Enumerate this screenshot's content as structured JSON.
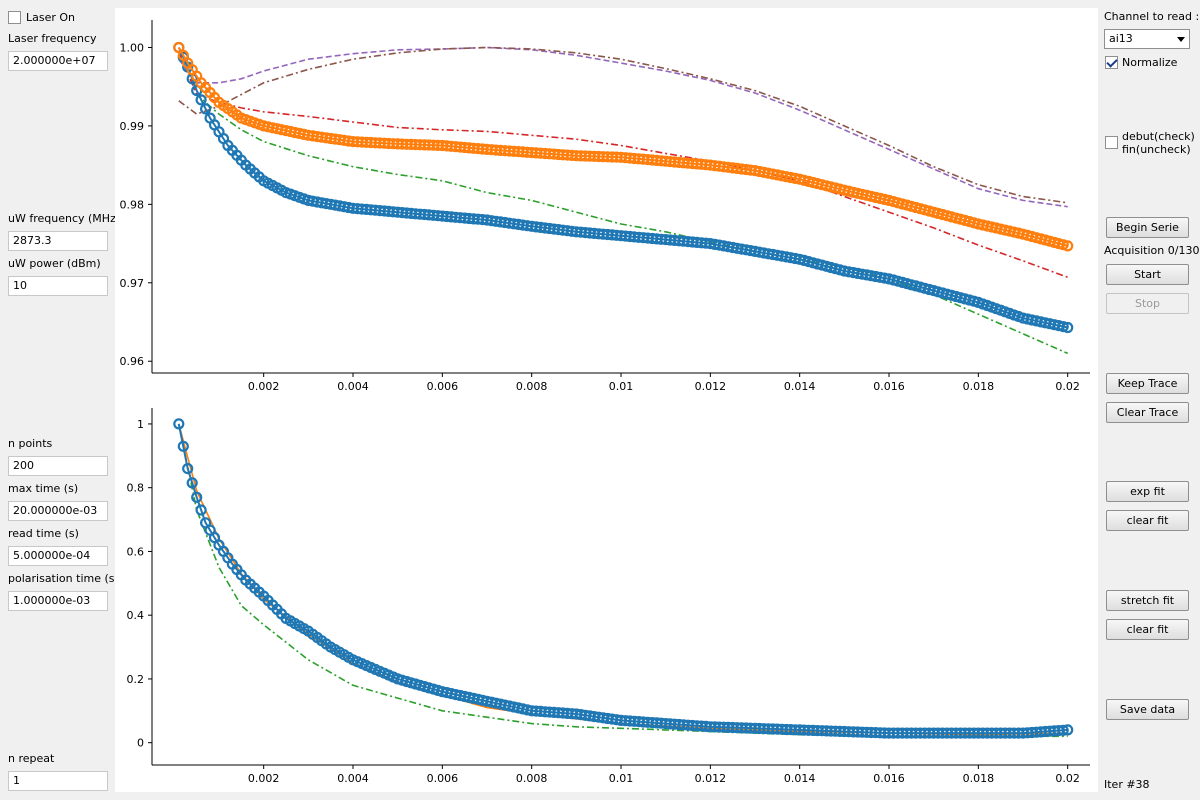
{
  "left_panel": {
    "laser_on_label": "Laser On",
    "laser_frequency_label": "Laser frequency",
    "laser_frequency_value": "2.000000e+07",
    "uw_frequency_label": "uW frequency (MHz)",
    "uw_frequency_value": "2873.3",
    "uw_power_label": "uW power (dBm)",
    "uw_power_value": "10",
    "n_points_label": "n points",
    "n_points_value": "200",
    "max_time_label": "max time (s)",
    "max_time_value": "20.000000e-03",
    "read_time_label": "read time (s)",
    "read_time_value": "5.000000e-04",
    "polarisation_time_label": "polarisation time (s)",
    "polarisation_time_value": "1.000000e-03",
    "n_repeat_label": "n repeat",
    "n_repeat_value": "1"
  },
  "right_panel": {
    "channel_label": "Channel to read :",
    "channel_value": "ai13",
    "normalize_label": "Normalize",
    "debut_label_1": "debut(check)",
    "debut_label_2": "fin(uncheck)",
    "begin_serie": "Begin Serie",
    "acquisition_status": "Acquisition 0/130",
    "start": "Start",
    "stop": "Stop",
    "keep_trace": "Keep Trace",
    "clear_trace": "Clear Trace",
    "exp_fit": "exp fit",
    "clear_fit_1": "clear fit",
    "stretch_fit": "stretch fit",
    "clear_fit_2": "clear fit",
    "save_data": "Save data",
    "iteration": "Iter #38"
  },
  "colors": {
    "blue": "#1f77b4",
    "orange": "#ff7f0e",
    "green": "#2ca02c",
    "red": "#d62728",
    "purple": "#9467bd",
    "brown": "#8c564b"
  },
  "chart_data": [
    {
      "type": "line",
      "x_ticks": [
        "0.002",
        "0.004",
        "0.006",
        "0.008",
        "0.01",
        "0.012",
        "0.014",
        "0.016",
        "0.018",
        "0.02"
      ],
      "y_ticks": [
        "0.96",
        "0.97",
        "0.98",
        "0.99",
        "1.00"
      ],
      "xlim": [
        -0.0005,
        0.0205
      ],
      "ylim": [
        0.9585,
        1.0035
      ],
      "series": [
        {
          "color": "#1f77b4",
          "style": "circles",
          "x": [
            0.0001,
            0.0003,
            0.0005,
            0.0008,
            0.0012,
            0.0016,
            0.002,
            0.0025,
            0.003,
            0.004,
            0.005,
            0.006,
            0.007,
            0.008,
            0.009,
            0.01,
            0.011,
            0.012,
            0.013,
            0.014,
            0.015,
            0.016,
            0.017,
            0.018,
            0.019,
            0.02
          ],
          "y": [
            1.0,
            0.9975,
            0.9945,
            0.991,
            0.9875,
            0.985,
            0.983,
            0.9815,
            0.9805,
            0.9795,
            0.979,
            0.9785,
            0.978,
            0.9772,
            0.9765,
            0.976,
            0.9755,
            0.975,
            0.974,
            0.973,
            0.9715,
            0.9705,
            0.969,
            0.9675,
            0.9655,
            0.9643
          ]
        },
        {
          "color": "#ff7f0e",
          "style": "circles",
          "x": [
            0.0001,
            0.0003,
            0.0006,
            0.001,
            0.0015,
            0.002,
            0.003,
            0.004,
            0.005,
            0.006,
            0.007,
            0.008,
            0.009,
            0.01,
            0.011,
            0.012,
            0.013,
            0.014,
            0.015,
            0.016,
            0.017,
            0.018,
            0.019,
            0.02
          ],
          "y": [
            1.0,
            0.998,
            0.9955,
            0.993,
            0.991,
            0.99,
            0.9888,
            0.988,
            0.9877,
            0.9875,
            0.987,
            0.9866,
            0.9862,
            0.986,
            0.9855,
            0.985,
            0.9843,
            0.9832,
            0.9818,
            0.9805,
            0.979,
            0.9775,
            0.9762,
            0.9747
          ]
        },
        {
          "color": "#2ca02c",
          "style": "dashdot",
          "x": [
            0.0001,
            0.0005,
            0.001,
            0.0015,
            0.002,
            0.003,
            0.004,
            0.005,
            0.006,
            0.007,
            0.008,
            0.009,
            0.01,
            0.011,
            0.012,
            0.013,
            0.014,
            0.015,
            0.016,
            0.017,
            0.018,
            0.019,
            0.02
          ],
          "y": [
            0.9995,
            0.994,
            0.9915,
            0.9895,
            0.988,
            0.9862,
            0.9848,
            0.9838,
            0.983,
            0.9815,
            0.9805,
            0.979,
            0.9775,
            0.9765,
            0.9752,
            0.974,
            0.973,
            0.972,
            0.9705,
            0.9685,
            0.966,
            0.9635,
            0.961
          ]
        },
        {
          "color": "#d62728",
          "style": "dashdot",
          "x": [
            0.0001,
            0.0005,
            0.001,
            0.0015,
            0.002,
            0.003,
            0.004,
            0.005,
            0.006,
            0.007,
            0.008,
            0.009,
            0.01,
            0.011,
            0.012,
            0.013,
            0.014,
            0.015,
            0.016,
            0.017,
            0.018,
            0.019,
            0.02
          ],
          "y": [
            0.9995,
            0.994,
            0.993,
            0.9923,
            0.9918,
            0.9912,
            0.9905,
            0.9898,
            0.9895,
            0.9893,
            0.9888,
            0.9883,
            0.9875,
            0.9865,
            0.9855,
            0.9843,
            0.983,
            0.981,
            0.979,
            0.977,
            0.9748,
            0.9728,
            0.9707
          ]
        },
        {
          "color": "#9467bd",
          "style": "dashed",
          "x": [
            0.0001,
            0.0005,
            0.001,
            0.0015,
            0.002,
            0.003,
            0.004,
            0.005,
            0.006,
            0.007,
            0.008,
            0.009,
            0.01,
            0.011,
            0.012,
            0.013,
            0.014,
            0.015,
            0.016,
            0.017,
            0.018,
            0.019,
            0.02
          ],
          "y": [
            0.9985,
            0.9955,
            0.9955,
            0.996,
            0.997,
            0.9985,
            0.9992,
            0.9997,
            0.9998,
            1.0,
            0.9997,
            0.999,
            0.998,
            0.997,
            0.9958,
            0.9942,
            0.992,
            0.9895,
            0.987,
            0.9845,
            0.982,
            0.9805,
            0.9797
          ]
        },
        {
          "color": "#8c564b",
          "style": "dashdot",
          "x": [
            0.0001,
            0.0005,
            0.001,
            0.0015,
            0.002,
            0.003,
            0.004,
            0.005,
            0.006,
            0.007,
            0.008,
            0.009,
            0.01,
            0.011,
            0.012,
            0.013,
            0.014,
            0.015,
            0.016,
            0.017,
            0.018,
            0.019,
            0.02
          ],
          "y": [
            0.9932,
            0.9915,
            0.9925,
            0.994,
            0.9955,
            0.9972,
            0.9985,
            0.9993,
            0.9998,
            1.0,
            0.9998,
            0.9993,
            0.9985,
            0.9973,
            0.996,
            0.9945,
            0.9925,
            0.99,
            0.9875,
            0.9848,
            0.9825,
            0.981,
            0.9802
          ]
        }
      ]
    },
    {
      "type": "line",
      "x_ticks": [
        "0.002",
        "0.004",
        "0.006",
        "0.008",
        "0.01",
        "0.012",
        "0.014",
        "0.016",
        "0.018",
        "0.02"
      ],
      "y_ticks": [
        "0",
        "0.2",
        "0.4",
        "0.6",
        "0.8",
        "1"
      ],
      "xlim": [
        -0.0005,
        0.0205
      ],
      "ylim": [
        -0.07,
        1.05
      ],
      "series": [
        {
          "color": "#1f77b4",
          "style": "circles",
          "x": [
            0.0001,
            0.0003,
            0.0005,
            0.0007,
            0.001,
            0.0013,
            0.0016,
            0.002,
            0.0025,
            0.003,
            0.0035,
            0.004,
            0.0045,
            0.005,
            0.006,
            0.007,
            0.008,
            0.009,
            0.01,
            0.011,
            0.012,
            0.013,
            0.014,
            0.015,
            0.016,
            0.017,
            0.018,
            0.019,
            0.02
          ],
          "y": [
            1.0,
            0.86,
            0.77,
            0.69,
            0.62,
            0.56,
            0.51,
            0.46,
            0.39,
            0.35,
            0.3,
            0.26,
            0.23,
            0.2,
            0.16,
            0.13,
            0.1,
            0.09,
            0.07,
            0.06,
            0.05,
            0.045,
            0.04,
            0.035,
            0.03,
            0.03,
            0.03,
            0.03,
            0.04
          ]
        },
        {
          "color": "#ff7f0e",
          "style": "solid",
          "x": [
            0.0001,
            0.0005,
            0.001,
            0.0015,
            0.002,
            0.003,
            0.004,
            0.005,
            0.006,
            0.007,
            0.008,
            0.009,
            0.01,
            0.012,
            0.014,
            0.016,
            0.018,
            0.02
          ],
          "y": [
            1.0,
            0.79,
            0.64,
            0.53,
            0.45,
            0.34,
            0.25,
            0.19,
            0.15,
            0.11,
            0.09,
            0.075,
            0.06,
            0.045,
            0.035,
            0.03,
            0.025,
            0.03
          ]
        },
        {
          "color": "#2ca02c",
          "style": "dashdot",
          "x": [
            0.0001,
            0.0005,
            0.001,
            0.0015,
            0.002,
            0.003,
            0.004,
            0.005,
            0.006,
            0.007,
            0.008,
            0.009,
            0.01,
            0.012,
            0.014,
            0.016,
            0.018,
            0.02
          ],
          "y": [
            1.0,
            0.73,
            0.55,
            0.43,
            0.37,
            0.26,
            0.18,
            0.14,
            0.1,
            0.08,
            0.06,
            0.05,
            0.045,
            0.035,
            0.025,
            0.02,
            0.02,
            0.02
          ]
        }
      ]
    }
  ]
}
